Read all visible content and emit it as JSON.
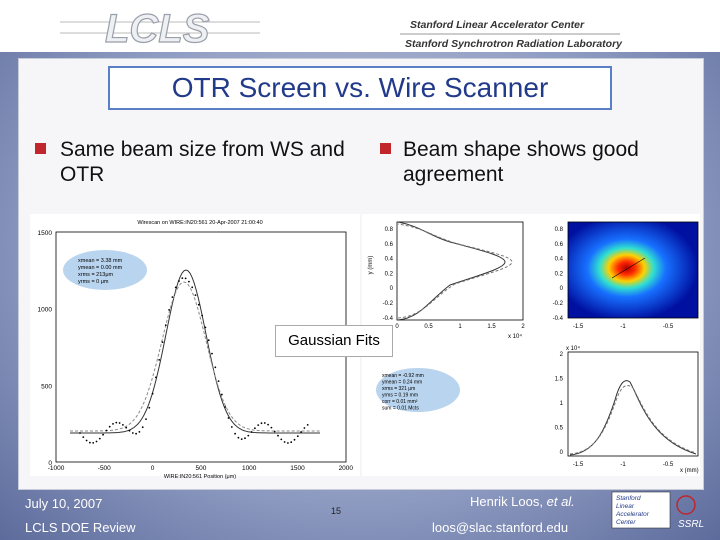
{
  "header": {
    "logo": "LCLS",
    "org_line_1": "Stanford Linear Accelerator Center",
    "org_line_2": "Stanford Synchrotron Radiation Laboratory"
  },
  "title": "OTR Screen vs. Wire Scanner",
  "bullets": [
    "Same beam size from WS and OTR",
    "Beam shape shows good agreement"
  ],
  "callout": "Gaussian Fits",
  "wire_plot": {
    "title": "Wirescan on WIRE:IN20:561 20-Apr-2007 21:00:40",
    "x_label": "WIRE:IN20:561 Position (μm)",
    "x_ticks": [
      "-1000",
      "-500",
      "0",
      "500",
      "1000",
      "1500",
      "2000"
    ],
    "y_ticks": [
      "1500",
      "1000",
      "500",
      "0"
    ],
    "stats": [
      "xmean = 3.38 mm",
      "ymean = 0.00 mm",
      "xrms = 213μm",
      "yrms = 0 μm"
    ]
  },
  "profile_plot": {
    "y_label": "y (mm)",
    "y_ticks": [
      "0.8",
      "0.6",
      "0.4",
      "0.2",
      "0",
      "-0.2",
      "-0.4"
    ],
    "x_ticks": [
      "0",
      "0.5",
      "1",
      "1.5",
      "2"
    ],
    "x_scale": "x 10⁴"
  },
  "image_plot": {
    "y_ticks": [
      "0.8",
      "0.6",
      "0.4",
      "0.2",
      "0",
      "-0.2",
      "-0.4"
    ],
    "x_ticks": [
      "-1.5",
      "-1",
      "-0.5"
    ]
  },
  "otr_stats": [
    "xmean = -0.92 mm",
    "ymean = 0.24 mm",
    "xrms = 321 μm",
    "yrms = 0.19 mm",
    "corr = 0.01 mm²",
    "sum = 0.01 Mcts"
  ],
  "x_profile_plot": {
    "y_scale": "x 10⁴",
    "y_ticks": [
      "2",
      "1.5",
      "1",
      "0.5",
      "0"
    ],
    "x_ticks": [
      "-1.5",
      "-1",
      "-0.5"
    ],
    "x_label": "x (mm)"
  },
  "footer": {
    "date": "July 10, 2007",
    "event": "LCLS DOE Review",
    "page": "15",
    "author": "Henrik Loos,",
    "author_etal": "et al.",
    "email": "loos@slac.stanford.edu",
    "logo_lines": [
      "Stanford",
      "Linear",
      "Accelerator",
      "Center"
    ],
    "logo_ssrl": "SSRL"
  }
}
